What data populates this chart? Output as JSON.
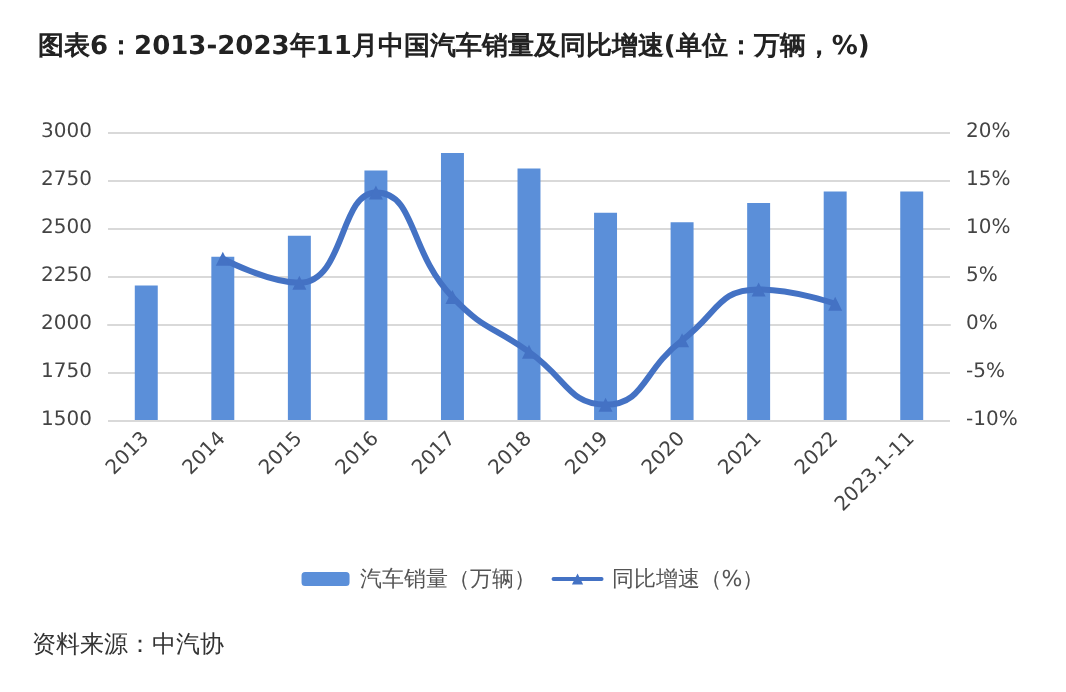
{
  "chart_data": {
    "type": "bar",
    "title": "图表6：2013-2023年11月中国汽车销量及同比增速(单位：万辆，%)",
    "categories": [
      "2013",
      "2014",
      "2015",
      "2016",
      "2017",
      "2018",
      "2019",
      "2020",
      "2021",
      "2022",
      "2023.1-11"
    ],
    "series": [
      {
        "name": "汽车销量（万辆）",
        "color": "#5b8fd9",
        "values": [
          2200,
          2350,
          2460,
          2800,
          2890,
          2810,
          2580,
          2530,
          2630,
          2690,
          2690
        ]
      },
      {
        "name": "同比增速（%）",
        "type": "line",
        "axis": "y2",
        "color": "#4472c4",
        "marker": "triangle",
        "values": [
          null,
          6.8,
          4.3,
          13.7,
          2.8,
          -2.9,
          -8.4,
          -1.7,
          3.6,
          2.1,
          null
        ]
      }
    ],
    "ylim": [
      1500,
      3000
    ],
    "yticks": [
      1500,
      1750,
      2000,
      2250,
      2500,
      2750,
      3000
    ],
    "y2lim": [
      -10,
      20
    ],
    "y2ticks": [
      {
        "value": -10,
        "label": "-10%"
      },
      {
        "value": -5,
        "label": "-5%"
      },
      {
        "value": 0,
        "label": "0%"
      },
      {
        "value": 5,
        "label": "5%"
      },
      {
        "value": 10,
        "label": "10%"
      },
      {
        "value": 15,
        "label": "15%"
      },
      {
        "value": 20,
        "label": "20%"
      }
    ],
    "grid": "y",
    "legend": "bottom",
    "annotations": [
      "资料来源：中汽协"
    ]
  }
}
